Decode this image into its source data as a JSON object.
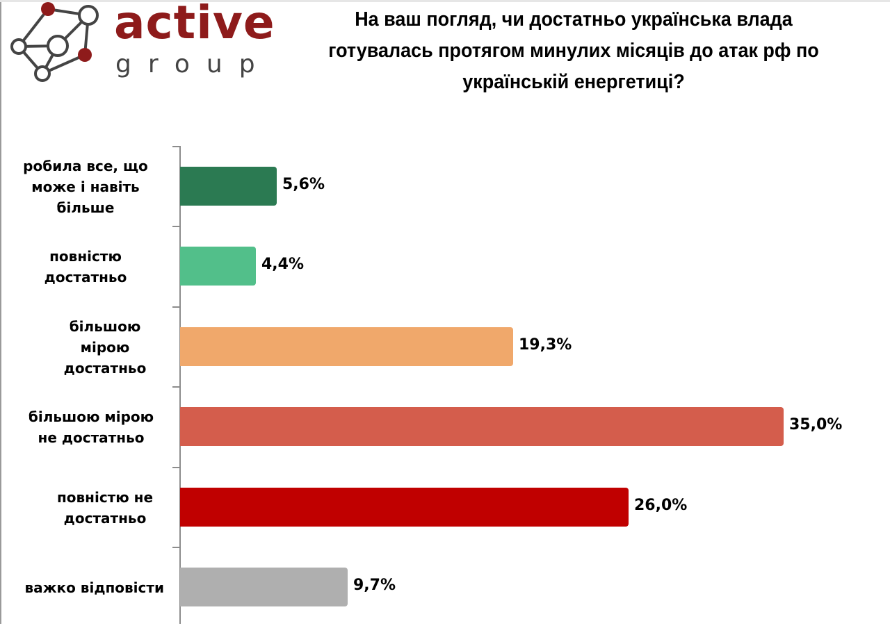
{
  "logo": {
    "brand_main": "active",
    "brand_sub": "group",
    "icon": "network-nodes-icon",
    "colors": {
      "brand_red": "#8e1b1b",
      "line": "#444444"
    }
  },
  "title": "На ваш погляд, чи достатньо українська влада готувалась протягом минулих місяців до атак рф по українській енергетиці?",
  "rows": [
    {
      "label": "робила все, що може і навіть більше",
      "value_label": "5,6%",
      "value": 5.6,
      "color": "#2b7a52"
    },
    {
      "label": "повністю достатньо",
      "value_label": "4,4%",
      "value": 4.4,
      "color": "#52bf8a"
    },
    {
      "label": "більшою мірою достатньо",
      "value_label": "19,3%",
      "value": 19.3,
      "color": "#f0a86b"
    },
    {
      "label": "більшою мірою не достатньо",
      "value_label": "35,0%",
      "value": 35.0,
      "color": "#d45d4c"
    },
    {
      "label": "повністю не достатньо",
      "value_label": "26,0%",
      "value": 26.0,
      "color": "#c00000"
    },
    {
      "label": "важко відповісти",
      "value_label": "9,7%",
      "value": 9.7,
      "color": "#afafaf"
    }
  ],
  "chart_data": {
    "type": "bar",
    "orientation": "horizontal",
    "title": "На ваш погляд, чи достатньо українська влада готувалась протягом минулих місяців до атак рф по українській енергетиці?",
    "categories": [
      "робила все, що може і навіть більше",
      "повністю достатньо",
      "більшою мірою достатньо",
      "більшою мірою не достатньо",
      "повністю не достатньо",
      "важко відповісти"
    ],
    "values": [
      5.6,
      4.4,
      19.3,
      35.0,
      26.0,
      9.7
    ],
    "data_labels": [
      "5,6%",
      "4,4%",
      "19,3%",
      "35,0%",
      "26,0%",
      "9,7%"
    ],
    "colors": [
      "#2b7a52",
      "#52bf8a",
      "#f0a86b",
      "#d45d4c",
      "#c00000",
      "#afafaf"
    ],
    "xlabel": "",
    "ylabel": "",
    "unit": "%",
    "xlim": [
      0,
      35
    ],
    "grid": false,
    "legend": null
  }
}
